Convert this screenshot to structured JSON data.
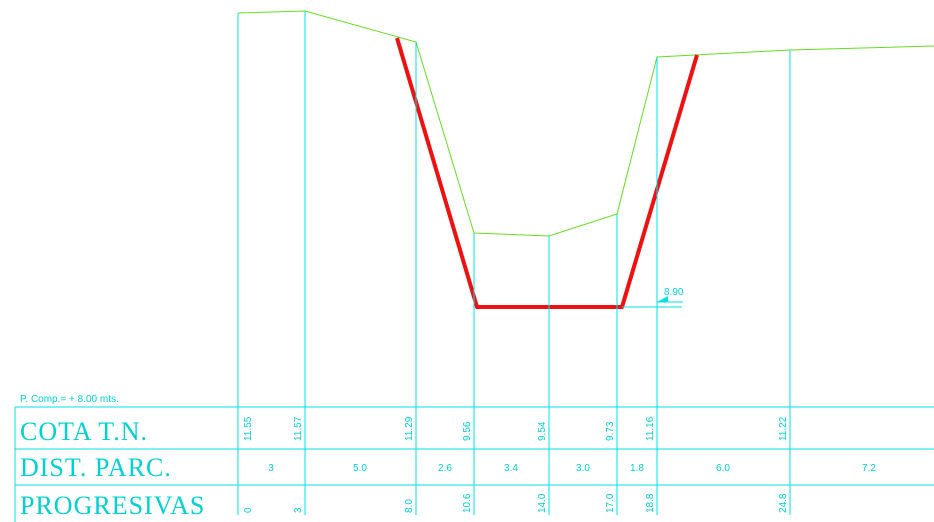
{
  "reference_plane": "P. Comp.= + 8.00 mts.",
  "rows": {
    "cota": "COTA  T.N.",
    "dist": "DIST.  PARC.",
    "prog": "PROGRESIVAS"
  },
  "level_marker": "8.90",
  "stations": [
    {
      "cota": "11.55",
      "prog": "0"
    },
    {
      "cota": "11.57",
      "prog": "3"
    },
    {
      "cota": "11.29",
      "prog": "8.0"
    },
    {
      "cota": "9.56",
      "prog": "10.6"
    },
    {
      "cota": "9.54",
      "prog": "14.0"
    },
    {
      "cota": "9.73",
      "prog": "17.0"
    },
    {
      "cota": "11.16",
      "prog": "18.8"
    },
    {
      "cota": "11.22",
      "prog": "24.8"
    }
  ],
  "dist_parc": [
    "3",
    "5.0",
    "2.6",
    "3.4",
    "3.0",
    "1.8",
    "6.0",
    "7.2"
  ],
  "colors": {
    "grid": "#00e0e0",
    "ground": "#66dd22",
    "design": "#ee1111"
  }
}
